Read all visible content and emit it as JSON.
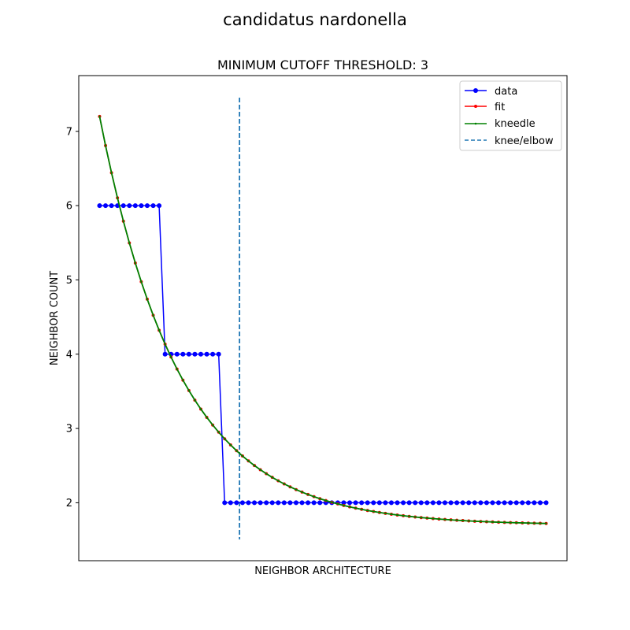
{
  "figure": {
    "suptitle": "candidatus nardonella"
  },
  "chart_data": {
    "type": "line",
    "title": "MINIMUM CUTOFF THRESHOLD: 3",
    "xlabel": "NEIGHBOR ARCHITECTURE",
    "ylabel": "NEIGHBOR COUNT",
    "x_ticks_visible": false,
    "x": [
      0,
      1,
      2,
      3,
      4,
      5,
      6,
      7,
      8,
      9,
      10,
      11,
      12,
      13,
      14,
      15,
      16,
      17,
      18,
      19,
      20,
      21,
      22,
      23,
      24,
      25,
      26,
      27,
      28,
      29,
      30,
      31,
      32,
      33,
      34,
      35,
      36,
      37,
      38,
      39,
      40,
      41,
      42,
      43,
      44,
      45,
      46,
      47,
      48,
      49,
      50,
      51,
      52,
      53,
      54,
      55,
      56,
      57,
      58,
      59,
      60,
      61,
      62,
      63,
      64,
      65,
      66,
      67,
      68,
      69,
      70,
      71,
      72,
      73,
      74,
      75
    ],
    "xlim": [
      -3.5,
      78.5
    ],
    "ylim": [
      1.22,
      7.75
    ],
    "y_ticks": [
      2,
      3,
      4,
      5,
      6,
      7
    ],
    "series": [
      {
        "name": "data",
        "color": "#0000ff",
        "marker": "circle",
        "values": [
          6,
          6,
          6,
          6,
          6,
          6,
          6,
          6,
          6,
          6,
          6,
          4,
          4,
          4,
          4,
          4,
          4,
          4,
          4,
          4,
          4,
          2,
          2,
          2,
          2,
          2,
          2,
          2,
          2,
          2,
          2,
          2,
          2,
          2,
          2,
          2,
          2,
          2,
          2,
          2,
          2,
          2,
          2,
          2,
          2,
          2,
          2,
          2,
          2,
          2,
          2,
          2,
          2,
          2,
          2,
          2,
          2,
          2,
          2,
          2,
          2,
          2,
          2,
          2,
          2,
          2,
          2,
          2,
          2,
          2,
          2,
          2,
          2,
          2,
          2,
          2
        ]
      },
      {
        "name": "fit",
        "color": "#ff0000",
        "marker": "small-circle",
        "model": "1.7 + 5.5 * exp(-x / 13.5)"
      },
      {
        "name": "kneedle",
        "color": "#008000",
        "marker": "tiny-dot",
        "model": "1.7 + 5.5 * exp(-x / 13.5)"
      }
    ],
    "knee": {
      "name": "knee/elbow",
      "x": 23.5,
      "color": "#1f77b4",
      "style": "dashed"
    },
    "legend": {
      "placement": "top-right",
      "entries": [
        "data",
        "fit",
        "kneedle",
        "knee/elbow"
      ]
    }
  }
}
